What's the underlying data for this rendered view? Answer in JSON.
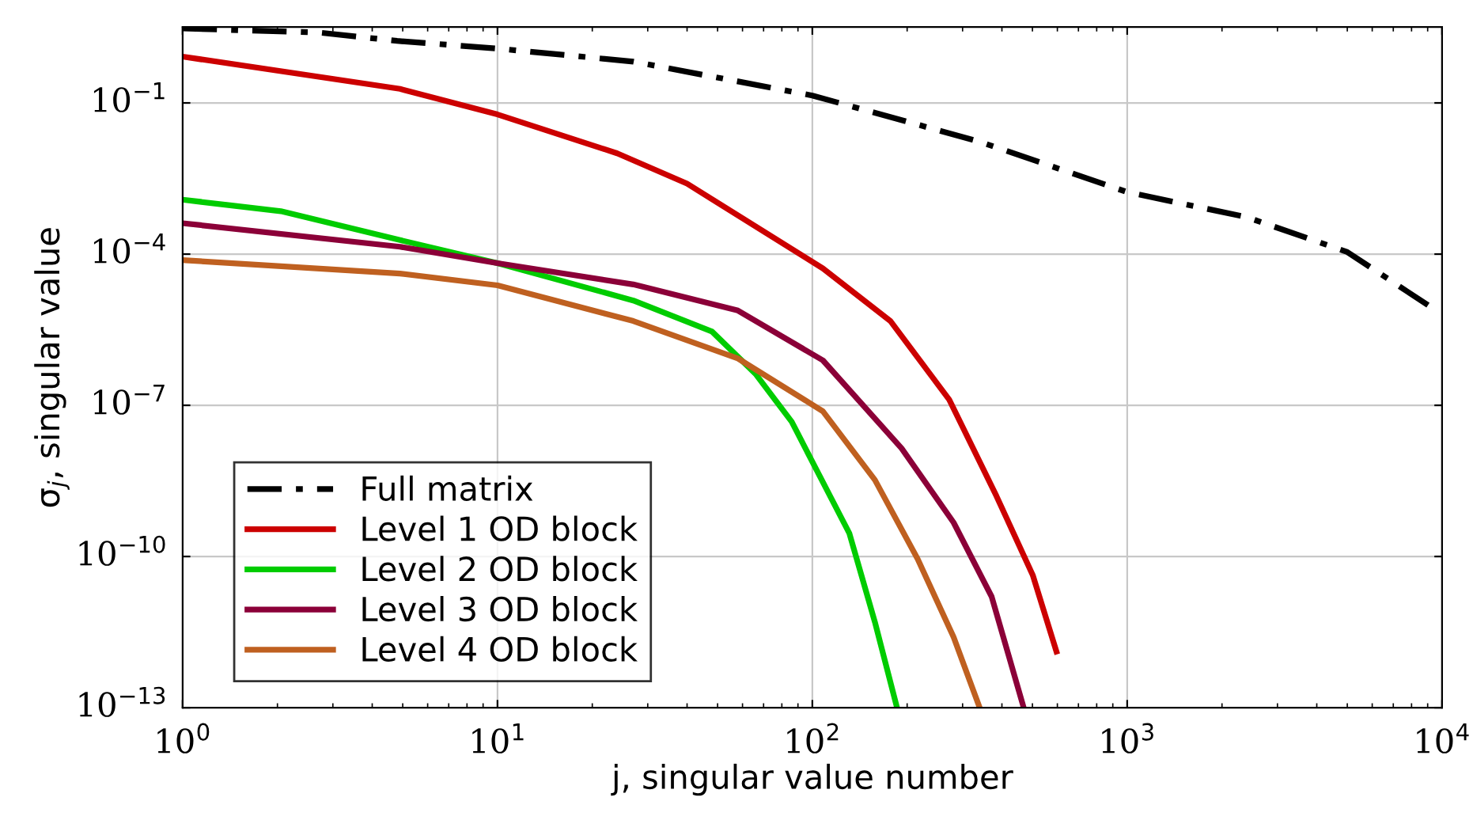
{
  "chart_data": {
    "type": "line",
    "xlabel": "j, singular value number",
    "ylabel": "σ$_{j}$, singular value",
    "log": "xy",
    "grid": true,
    "legend": "bottom left",
    "line_style": "solid",
    "marker": "none",
    "xlim": [
      1,
      10000
    ],
    "ylim": [
      1e-13,
      3.2
    ],
    "xticks": [
      {
        "value": 1,
        "label": "10$^{0}$"
      },
      {
        "value": 10,
        "label": "10$^{1}$"
      },
      {
        "value": 100,
        "label": "10$^{2}$"
      },
      {
        "value": 1000,
        "label": "10$^{3}$"
      },
      {
        "value": 10000,
        "label": "10$^{4}$"
      }
    ],
    "yticks": [
      {
        "value": 1e-13,
        "label": "10$^{−13}$"
      },
      {
        "value": 1e-10,
        "label": "10$^{−10}$"
      },
      {
        "value": 1e-07,
        "label": "10$^{−7}$"
      },
      {
        "value": 0.0001,
        "label": "10$^{−4}$"
      },
      {
        "value": 0.1,
        "label": "10$^{−1}$"
      }
    ],
    "series": [
      {
        "name": "Full matrix",
        "color": "#000000",
        "line_style": "dashdot",
        "x": [
          1,
          2.7,
          4.8,
          10,
          27,
          100,
          340,
          1000,
          2400,
          5000,
          9800
        ],
        "values": [
          3.0,
          2.5,
          1.7,
          1.2,
          0.66,
          0.14,
          0.017,
          0.0017,
          0.00054,
          0.00011,
          6.9e-06
        ]
      },
      {
        "name": "Level 1 OD block",
        "color": "#cc0000",
        "x": [
          1,
          4.9,
          10,
          24,
          40,
          108,
          177,
          272,
          384,
          501,
          596
        ],
        "values": [
          0.83,
          0.19,
          0.059,
          0.01,
          0.0025,
          5.2e-05,
          4.7e-06,
          1.3e-07,
          1.6e-09,
          4.3e-11,
          1.3e-12
        ]
      },
      {
        "name": "Level 2 OD block",
        "color": "#00cc00",
        "x": [
          1,
          2.05,
          4.9,
          10,
          27,
          48,
          66,
          86,
          131,
          158,
          185
        ],
        "values": [
          0.0012,
          0.00071,
          0.00019,
          6.6e-05,
          1.2e-05,
          2.9e-06,
          4.2e-07,
          4.7e-08,
          2.9e-10,
          5e-12,
          1.1e-13
        ]
      },
      {
        "name": "Level 3 OD block",
        "color": "#8b0038",
        "x": [
          1,
          4.9,
          10,
          27,
          58,
          108,
          192,
          281,
          371,
          467
        ],
        "values": [
          0.00041,
          0.00014,
          6.6e-05,
          2.5e-05,
          7.6e-06,
          7.8e-07,
          1.4e-08,
          4.7e-10,
          1.6e-11,
          1.1e-13
        ]
      },
      {
        "name": "Level 4 OD block",
        "color": "#bf6020",
        "x": [
          1,
          4.9,
          10,
          27,
          58,
          108,
          158,
          216,
          281,
          338
        ],
        "values": [
          7.6e-05,
          4.1e-05,
          2.4e-05,
          4.7e-06,
          8.5e-07,
          7.6e-08,
          3.3e-09,
          8.9e-11,
          2.5e-12,
          1.1e-13
        ]
      }
    ]
  }
}
